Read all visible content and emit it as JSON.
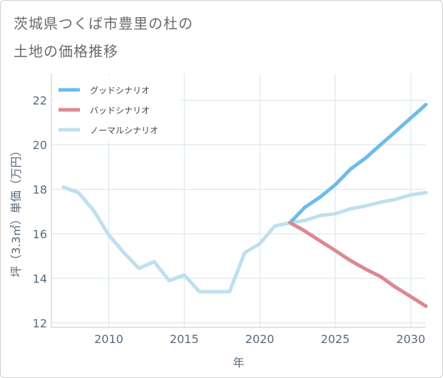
{
  "title_lines": [
    "茨城県つくば市豊里の杜の",
    "土地の価格推移"
  ],
  "chart_data": {
    "type": "line",
    "title": "茨城県つくば市豊里の杜の土地の価格推移",
    "xlabel": "年",
    "ylabel": "坪（3.3㎡）単価（万円）",
    "xlim": [
      2006.2,
      2031
    ],
    "ylim": [
      11.8,
      23.2
    ],
    "xticks": [
      2010,
      2015,
      2020,
      2025,
      2030
    ],
    "yticks": [
      12,
      14,
      16,
      18,
      20,
      22
    ],
    "grid": true,
    "legend_position": "top-left",
    "series": [
      {
        "name": "グッドシナリオ",
        "color": "#6cbcea",
        "x": [
          2022,
          2023,
          2024,
          2025,
          2026,
          2027,
          2028,
          2029,
          2030,
          2031
        ],
        "y": [
          16.5,
          17.2,
          17.65,
          18.2,
          18.9,
          19.4,
          20.0,
          20.6,
          21.2,
          21.8
        ]
      },
      {
        "name": "バッドシナリオ",
        "color": "#dc8890",
        "x": [
          2022,
          2023,
          2024,
          2025,
          2026,
          2027,
          2028,
          2029,
          2030,
          2031
        ],
        "y": [
          16.5,
          16.12,
          15.68,
          15.25,
          14.8,
          14.42,
          14.08,
          13.6,
          13.18,
          12.75
        ]
      },
      {
        "name": "ノーマルシナリオ",
        "color": "#bde0ee",
        "x": [
          2007,
          2008,
          2009,
          2010,
          2011,
          2012,
          2013,
          2014,
          2015,
          2016,
          2017,
          2018,
          2019,
          2020,
          2021,
          2022,
          2023,
          2024,
          2025,
          2026,
          2027,
          2028,
          2029,
          2030,
          2031
        ],
        "y": [
          18.1,
          17.85,
          17.05,
          15.95,
          15.15,
          14.45,
          14.75,
          13.9,
          14.15,
          13.4,
          13.4,
          13.4,
          15.15,
          15.55,
          16.35,
          16.5,
          16.6,
          16.82,
          16.9,
          17.12,
          17.25,
          17.42,
          17.55,
          17.75,
          17.85
        ]
      }
    ]
  }
}
